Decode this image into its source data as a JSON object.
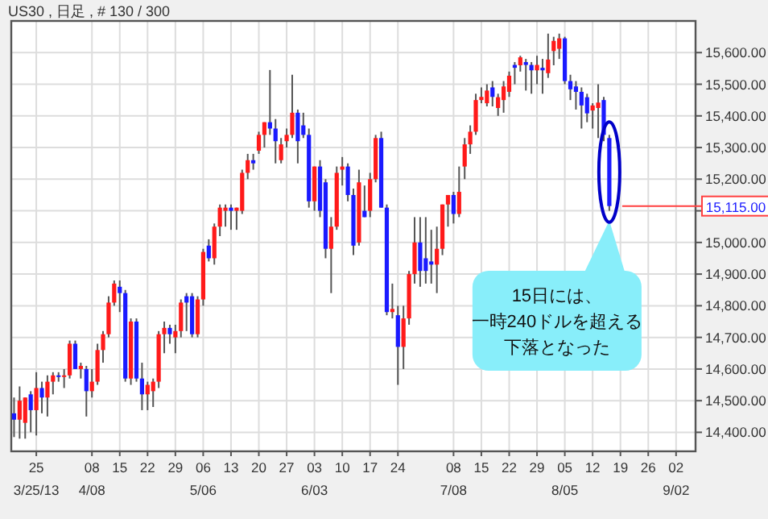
{
  "chart_data": {
    "type": "candlestick",
    "title": "US30 , 日足 , # 130 / 300",
    "categories": [
      null,
      null,
      null,
      null,
      "25\n3/25/13",
      null,
      null,
      null,
      null,
      null,
      null,
      null,
      null,
      null,
      "08\n4/08",
      null,
      null,
      null,
      null,
      "15",
      null,
      null,
      null,
      null,
      "22",
      null,
      null,
      null,
      null,
      "29",
      null,
      null,
      null,
      null,
      "06\n5/06",
      null,
      null,
      null,
      null,
      "13",
      null,
      null,
      null,
      null,
      "20",
      null,
      null,
      null,
      null,
      "27",
      null,
      null,
      null,
      null,
      "03\n6/03",
      null,
      null,
      null,
      null,
      "10",
      null,
      null,
      null,
      null,
      "17",
      null,
      null,
      null,
      null,
      "24",
      null,
      null,
      null,
      null,
      null,
      null,
      null,
      null,
      null,
      "08\n7/08",
      null,
      null,
      null,
      null,
      "15",
      null,
      null,
      null,
      null,
      "22",
      null,
      null,
      null,
      null,
      "29",
      null,
      null,
      null,
      null,
      "05\n8/05",
      null,
      null,
      null,
      null,
      "12",
      null,
      null,
      null,
      null,
      "19",
      null,
      null,
      null,
      null,
      "26",
      null,
      null,
      null,
      null,
      "02\n9/02",
      null,
      null,
      null
    ],
    "ohlc": [
      [
        14460,
        14510,
        14385,
        14440
      ],
      [
        14440,
        14545,
        14380,
        14500
      ],
      [
        14430,
        14510,
        14380,
        14510
      ],
      [
        14520,
        14530,
        14400,
        14470
      ],
      [
        14470,
        14590,
        14390,
        14540
      ],
      [
        14540,
        14560,
        14460,
        14510
      ],
      [
        14510,
        14580,
        14450,
        14560
      ],
      [
        14560,
        14590,
        14520,
        14580
      ],
      [
        14580,
        14590,
        14560,
        14575
      ],
      [
        14575,
        14600,
        14540,
        14580
      ],
      [
        14580,
        14690,
        14570,
        14680
      ],
      [
        14680,
        14690,
        14600,
        14600
      ],
      [
        14600,
        14620,
        14570,
        14610
      ],
      [
        14600,
        14610,
        14450,
        14530
      ],
      [
        14530,
        14600,
        14510,
        14560
      ],
      [
        14560,
        14680,
        14550,
        14660
      ],
      [
        14660,
        14720,
        14620,
        14710
      ],
      [
        14710,
        14830,
        14700,
        14810
      ],
      [
        14810,
        14880,
        14800,
        14870
      ],
      [
        14860,
        14880,
        14780,
        14840
      ],
      [
        14840,
        14850,
        14560,
        14570
      ],
      [
        14570,
        14760,
        14550,
        14750
      ],
      [
        14750,
        14760,
        14560,
        14570
      ],
      [
        14570,
        14620,
        14470,
        14520
      ],
      [
        14520,
        14560,
        14470,
        14550
      ],
      [
        14530,
        14570,
        14480,
        14560
      ],
      [
        14560,
        14720,
        14540,
        14710
      ],
      [
        14710,
        14750,
        14650,
        14730
      ],
      [
        14730,
        14740,
        14680,
        14710
      ],
      [
        14700,
        14740,
        14650,
        14720
      ],
      [
        14720,
        14820,
        14700,
        14810
      ],
      [
        14830,
        14840,
        14720,
        14810
      ],
      [
        14830,
        14840,
        14700,
        14710
      ],
      [
        14710,
        14830,
        14700,
        14820
      ],
      [
        14820,
        14980,
        14800,
        14970
      ],
      [
        14990,
        15010,
        14940,
        14950
      ],
      [
        14950,
        15060,
        14930,
        15050
      ],
      [
        15050,
        15120,
        15020,
        15110
      ],
      [
        15100,
        15120,
        15050,
        15110
      ],
      [
        15110,
        15120,
        15040,
        15100
      ],
      [
        15100,
        15110,
        15040,
        15110
      ],
      [
        15100,
        15230,
        15090,
        15220
      ],
      [
        15220,
        15280,
        15200,
        15260
      ],
      [
        15260,
        15280,
        15230,
        15250
      ],
      [
        15290,
        15350,
        15280,
        15340
      ],
      [
        15340,
        15380,
        15300,
        15380
      ],
      [
        15380,
        15545,
        15340,
        15360
      ],
      [
        15360,
        15390,
        15250,
        15320
      ],
      [
        15260,
        15330,
        15250,
        15310
      ],
      [
        15320,
        15360,
        15300,
        15340
      ],
      [
        15340,
        15530,
        15330,
        15410
      ],
      [
        15410,
        15420,
        15250,
        15320
      ],
      [
        15370,
        15410,
        15330,
        15340
      ],
      [
        15340,
        15360,
        15110,
        15130
      ],
      [
        15130,
        15240,
        15100,
        15240
      ],
      [
        15240,
        15260,
        15080,
        15100
      ],
      [
        15190,
        15200,
        14950,
        14980
      ],
      [
        14980,
        15080,
        14840,
        15050
      ],
      [
        15050,
        15240,
        15040,
        15220
      ],
      [
        15230,
        15270,
        15180,
        15240
      ],
      [
        15240,
        15250,
        15130,
        15150
      ],
      [
        15150,
        15170,
        14960,
        14990
      ],
      [
        15000,
        15230,
        14990,
        15190
      ],
      [
        15100,
        15180,
        15080,
        15080
      ],
      [
        15100,
        15220,
        15080,
        15200
      ],
      [
        15200,
        15340,
        15190,
        15330
      ],
      [
        15330,
        15350,
        15110,
        15110
      ],
      [
        15110,
        15120,
        14770,
        14780
      ],
      [
        14780,
        14870,
        14760,
        14790
      ],
      [
        14770,
        14800,
        14550,
        14670
      ],
      [
        14670,
        14800,
        14600,
        14760
      ],
      [
        14760,
        14910,
        14740,
        14900
      ],
      [
        14900,
        15080,
        14870,
        15000
      ],
      [
        15000,
        15080,
        14860,
        14910
      ],
      [
        14950,
        15080,
        14870,
        14910
      ],
      [
        14940,
        15040,
        14870,
        14930
      ],
      [
        14930,
        15050,
        14840,
        14980
      ],
      [
        14980,
        15120,
        14960,
        15120
      ],
      [
        15120,
        15150,
        15050,
        15150
      ],
      [
        15150,
        15160,
        15060,
        15090
      ],
      [
        15090,
        15240,
        15080,
        15160
      ],
      [
        15240,
        15330,
        15200,
        15310
      ],
      [
        15310,
        15370,
        15280,
        15350
      ],
      [
        15350,
        15470,
        15340,
        15450
      ],
      [
        15450,
        15490,
        15440,
        15460
      ],
      [
        15440,
        15500,
        15430,
        15480
      ],
      [
        15490,
        15510,
        15430,
        15460
      ],
      [
        15425,
        15470,
        15400,
        15459
      ],
      [
        15450,
        15510,
        15410,
        15493
      ],
      [
        15476,
        15540,
        15460,
        15527
      ],
      [
        15561,
        15570,
        15500,
        15552
      ],
      [
        15560,
        15590,
        15540,
        15585
      ],
      [
        15570,
        15580,
        15480,
        15561
      ],
      [
        15561,
        15570,
        15470,
        15544
      ],
      [
        15544,
        15590,
        15500,
        15561
      ],
      [
        15552,
        15580,
        15470,
        15544
      ],
      [
        15535,
        15660,
        15520,
        15578
      ],
      [
        15605,
        15650,
        15560,
        15637
      ],
      [
        15612,
        15660,
        15580,
        15645
      ],
      [
        15645,
        15650,
        15500,
        15510
      ],
      [
        15510,
        15530,
        15450,
        15484
      ],
      [
        15493,
        15510,
        15420,
        15476
      ],
      [
        15476,
        15490,
        15360,
        15433
      ],
      [
        15459,
        15470,
        15380,
        15408
      ],
      [
        15417,
        15440,
        15360,
        15433
      ],
      [
        15425,
        15500,
        15330,
        15442
      ],
      [
        15450,
        15460,
        15320,
        15340
      ],
      [
        15330,
        15340,
        15100,
        15115
      ],
      null,
      null,
      null,
      null,
      null,
      null,
      null,
      null,
      null,
      null,
      null,
      null,
      null,
      null,
      null
    ],
    "colors": [
      "#1a1aff",
      "#ff1a1a",
      "#ff1a1a",
      "#1a1aff",
      "#ff1a1a",
      "#1a1aff",
      "#ff1a1a",
      "#ff1a1a",
      "#1a1aff",
      "#ff1a1a",
      "#ff1a1a",
      "#1a1aff",
      "#ff1a1a",
      "#1a1aff",
      "#ff1a1a",
      "#ff1a1a",
      "#ff1a1a",
      "#ff1a1a",
      "#ff1a1a",
      "#1a1aff",
      "#1a1aff",
      "#ff1a1a",
      "#1a1aff",
      "#1a1aff",
      "#ff1a1a",
      "#ff1a1a",
      "#ff1a1a",
      "#ff1a1a",
      "#1a1aff",
      "#ff1a1a",
      "#ff1a1a",
      "#1a1aff",
      "#1a1aff",
      "#ff1a1a",
      "#ff1a1a",
      "#1a1aff",
      "#ff1a1a",
      "#ff1a1a",
      "#ff1a1a",
      "#1a1aff",
      "#ff1a1a",
      "#ff1a1a",
      "#ff1a1a",
      "#1a1aff",
      "#ff1a1a",
      "#ff1a1a",
      "#1a1aff",
      "#1a1aff",
      "#ff1a1a",
      "#ff1a1a",
      "#ff1a1a",
      "#1a1aff",
      "#1a1aff",
      "#1a1aff",
      "#ff1a1a",
      "#1a1aff",
      "#1a1aff",
      "#ff1a1a",
      "#ff1a1a",
      "#ff1a1a",
      "#1a1aff",
      "#1a1aff",
      "#ff1a1a",
      "#1a1aff",
      "#ff1a1a",
      "#ff1a1a",
      "#1a1aff",
      "#1a1aff",
      "#ff1a1a",
      "#1a1aff",
      "#ff1a1a",
      "#ff1a1a",
      "#ff1a1a",
      "#1a1aff",
      "#1a1aff",
      "#1a1aff",
      "#ff1a1a",
      "#ff1a1a",
      "#ff1a1a",
      "#1a1aff",
      "#ff1a1a",
      "#ff1a1a",
      "#ff1a1a",
      "#ff1a1a",
      "#ff1a1a",
      "#ff1a1a",
      "#1a1aff",
      "#ff1a1a",
      "#ff1a1a",
      "#ff1a1a",
      "#1a1aff",
      "#ff1a1a",
      "#1a1aff",
      "#1a1aff",
      "#ff1a1a",
      "#1a1aff",
      "#ff1a1a",
      "#ff1a1a",
      "#ff1a1a",
      "#1a1aff",
      "#1a1aff",
      "#1a1aff",
      "#1a1aff",
      "#1a1aff",
      "#ff1a1a",
      "#ff1a1a",
      "#1a1aff",
      "#1a1aff",
      null,
      null,
      null,
      null,
      null,
      null,
      null,
      null,
      null,
      null,
      null,
      null,
      null,
      null,
      null
    ],
    "ylim": [
      14340,
      15700
    ],
    "yticks": [
      {
        "value": 14400,
        "label": "14,400.00"
      },
      {
        "value": 14500,
        "label": "14,500.00"
      },
      {
        "value": 14600,
        "label": "14,600.00"
      },
      {
        "value": 14700,
        "label": "14,700.00"
      },
      {
        "value": 14800,
        "label": "14,800.00"
      },
      {
        "value": 14900,
        "label": "14,900.00"
      },
      {
        "value": 15000,
        "label": "15,000.00"
      },
      {
        "value": 15100,
        "label": null
      },
      {
        "value": 15200,
        "label": "15,200.00"
      },
      {
        "value": 15300,
        "label": "15,300.00"
      },
      {
        "value": 15400,
        "label": "15,400.00"
      },
      {
        "value": 15500,
        "label": "15,500.00"
      },
      {
        "value": 15600,
        "label": "15,600.00"
      }
    ],
    "grid": true,
    "ref_lines": [
      {
        "axis": "y",
        "value": 15115,
        "label": "15,115.00",
        "color": "#ff4040"
      }
    ],
    "annotations": [
      "15日には、",
      "一時240ドルを超える",
      "下落となった"
    ]
  }
}
